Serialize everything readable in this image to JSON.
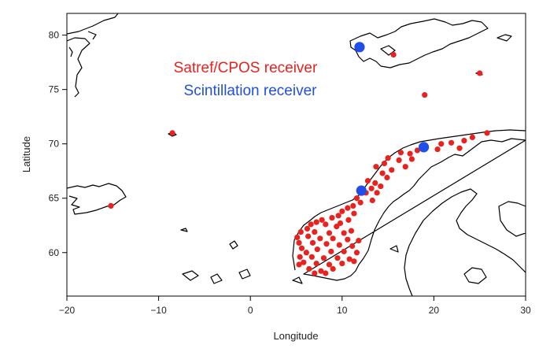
{
  "chart_data": {
    "type": "scatter",
    "xlabel": "Longitude",
    "ylabel": "Latitude",
    "xlim": [
      -20,
      30
    ],
    "ylim": [
      56,
      82
    ],
    "x_ticks": [
      "-20",
      "-10",
      "0",
      "10",
      "20",
      "30"
    ],
    "y_ticks": [
      "60",
      "65",
      "70",
      "75",
      "80"
    ],
    "legend_placement": "top-center",
    "grid": false,
    "series": [
      {
        "name": "Satref/CPOS receiver",
        "color": "#e8221e",
        "points": [
          [
            15.6,
            78.2
          ],
          [
            25.0,
            76.5
          ],
          [
            19.0,
            74.5
          ],
          [
            -8.5,
            71.0
          ],
          [
            -15.2,
            64.3
          ],
          [
            25.8,
            71.0
          ],
          [
            24.2,
            70.6
          ],
          [
            23.3,
            70.3
          ],
          [
            21.9,
            70.1
          ],
          [
            22.8,
            69.6
          ],
          [
            20.4,
            69.5
          ],
          [
            20.8,
            70.0
          ],
          [
            18.2,
            69.4
          ],
          [
            17.4,
            69.1
          ],
          [
            16.4,
            69.2
          ],
          [
            16.2,
            68.5
          ],
          [
            17.6,
            68.6
          ],
          [
            15.0,
            68.7
          ],
          [
            14.6,
            68.2
          ],
          [
            13.7,
            67.9
          ],
          [
            16.9,
            67.9
          ],
          [
            15.4,
            67.6
          ],
          [
            14.4,
            67.3
          ],
          [
            14.9,
            66.9
          ],
          [
            13.6,
            66.4
          ],
          [
            14.2,
            66.1
          ],
          [
            12.8,
            66.6
          ],
          [
            13.2,
            65.9
          ],
          [
            12.6,
            65.5
          ],
          [
            13.8,
            65.5
          ],
          [
            11.6,
            65.0
          ],
          [
            13.3,
            64.8
          ],
          [
            12.0,
            64.6
          ],
          [
            11.2,
            64.3
          ],
          [
            10.6,
            64.1
          ],
          [
            10.0,
            63.8
          ],
          [
            11.3,
            63.6
          ],
          [
            9.6,
            63.4
          ],
          [
            8.9,
            63.2
          ],
          [
            10.7,
            63.0
          ],
          [
            7.8,
            63.0
          ],
          [
            7.2,
            62.8
          ],
          [
            6.6,
            62.6
          ],
          [
            8.2,
            62.6
          ],
          [
            9.4,
            62.4
          ],
          [
            6.2,
            62.2
          ],
          [
            5.5,
            61.9
          ],
          [
            7.0,
            61.9
          ],
          [
            8.6,
            61.8
          ],
          [
            10.2,
            61.8
          ],
          [
            5.1,
            61.4
          ],
          [
            6.3,
            61.5
          ],
          [
            7.6,
            61.3
          ],
          [
            9.0,
            61.3
          ],
          [
            10.6,
            61.2
          ],
          [
            11.8,
            61.1
          ],
          [
            5.3,
            60.9
          ],
          [
            6.8,
            60.9
          ],
          [
            8.3,
            60.8
          ],
          [
            9.7,
            60.7
          ],
          [
            11.1,
            60.6
          ],
          [
            5.6,
            60.4
          ],
          [
            6.1,
            60.0
          ],
          [
            7.3,
            60.3
          ],
          [
            8.8,
            60.1
          ],
          [
            10.2,
            60.1
          ],
          [
            11.6,
            60.0
          ],
          [
            5.4,
            59.6
          ],
          [
            6.7,
            59.6
          ],
          [
            8.0,
            59.5
          ],
          [
            9.5,
            59.5
          ],
          [
            10.8,
            59.4
          ],
          [
            5.8,
            59.1
          ],
          [
            7.2,
            59.0
          ],
          [
            8.6,
            58.9
          ],
          [
            10.0,
            59.0
          ],
          [
            11.3,
            59.2
          ],
          [
            6.4,
            58.5
          ],
          [
            7.7,
            58.3
          ],
          [
            9.0,
            58.5
          ],
          [
            5.3,
            58.9
          ],
          [
            7.0,
            58.1
          ],
          [
            8.2,
            58.1
          ],
          [
            11.0,
            62.0
          ],
          [
            9.8,
            62.7
          ]
        ]
      },
      {
        "name": "Scintillation receiver",
        "color": "#1f4fe8",
        "points": [
          [
            11.9,
            78.9
          ],
          [
            18.9,
            69.7
          ],
          [
            12.1,
            65.7
          ]
        ]
      }
    ]
  }
}
